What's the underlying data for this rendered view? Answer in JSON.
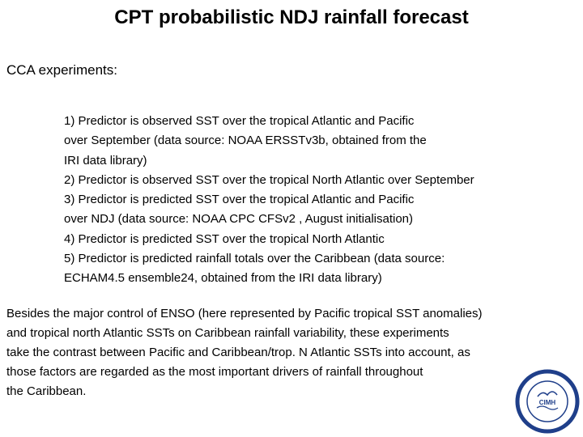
{
  "slide": {
    "title": "CPT probabilistic NDJ rainfall forecast",
    "section_heading": "CCA experiments:"
  },
  "experiments": [
    {
      "lines": [
        "1) Predictor is observed SST over the tropical Atlantic and Pacific",
        "over September (data source: NOAA ERSSTv3b, obtained from the",
        "IRI data library)"
      ]
    },
    {
      "lines": [
        "2) Predictor is observed SST over the tropical North Atlantic over September"
      ]
    },
    {
      "lines": [
        "3) Predictor is predicted SST over the tropical Atlantic and Pacific",
        "over NDJ (data source: NOAA CPC CFSv2 , August initialisation)"
      ]
    },
    {
      "lines": [
        "4) Predictor is predicted SST over the tropical North Atlantic"
      ]
    },
    {
      "lines": [
        "5) Predictor is predicted rainfall totals over the Caribbean (data source:",
        "ECHAM4.5 ensemble24, obtained from the IRI data library)"
      ]
    }
  ],
  "summary": {
    "lines": [
      "Besides the major control of ENSO (here represented by Pacific tropical SST anomalies)",
      "and tropical north Atlantic SSTs on Caribbean rainfall variability, these experiments",
      "take the contrast between Pacific and Caribbean/trop. N Atlantic SSTs into account, as",
      "those factors are regarded as the most important drivers of rainfall throughout",
      "the Caribbean."
    ]
  },
  "logo": {
    "center_text": "CIMH",
    "colors": {
      "ring": "#1f3f8a",
      "fill": "#ffffff",
      "text": "#1f3f8a"
    }
  }
}
